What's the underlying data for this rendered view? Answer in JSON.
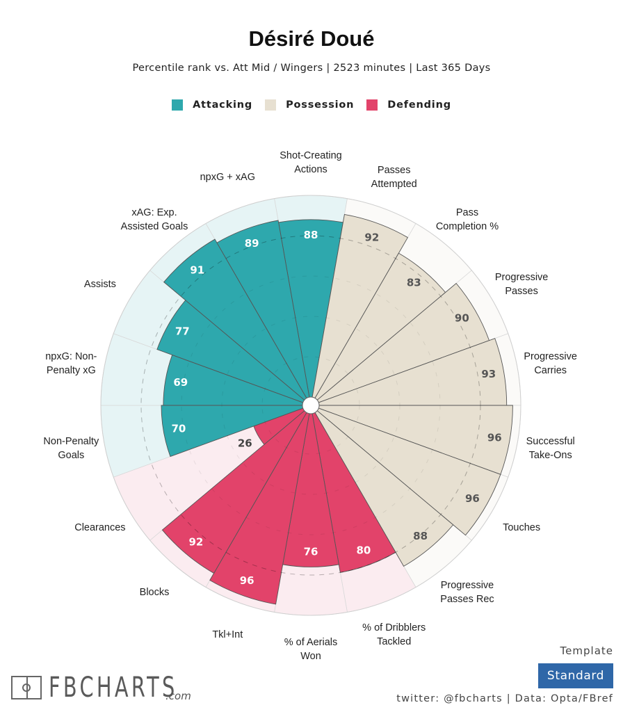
{
  "header": {
    "title": "Désiré Doué",
    "subtitle": "Percentile rank vs. Att Mid / Wingers | 2523 minutes | Last 365 Days"
  },
  "legend": [
    {
      "label": "Attacking",
      "color": "#2ea8ad"
    },
    {
      "label": "Possession",
      "color": "#e7e0d1"
    },
    {
      "label": "Defending",
      "color": "#e2436a"
    }
  ],
  "colors": {
    "Attacking": {
      "bar": "#2ea8ad",
      "bg": "#e6f4f5",
      "text": "#ffffff"
    },
    "Possession": {
      "bar": "#e7e0d1",
      "bg": "#fbfaf8",
      "text": "#555555"
    },
    "Defending": {
      "bar": "#e2436a",
      "bg": "#fbecf0",
      "text": "#ffffff"
    },
    "outside_text": "#444444"
  },
  "chart_data": {
    "type": "polar-bar",
    "title": "Désiré Doué",
    "subtitle": "Percentile rank vs. Att Mid / Wingers | 2523 minutes | Last 365 Days",
    "range": [
      0,
      100
    ],
    "reference_ring": 80,
    "grid_rings": [
      20,
      40,
      60
    ],
    "direction": "clockwise from top",
    "categories": [
      {
        "label": "Shot-Creating\nActions",
        "value": 88,
        "group": "Attacking"
      },
      {
        "label": "Passes\nAttempted",
        "value": 92,
        "group": "Possession"
      },
      {
        "label": "Pass\nCompletion %",
        "value": 83,
        "group": "Possession"
      },
      {
        "label": "Progressive\nPasses",
        "value": 90,
        "group": "Possession"
      },
      {
        "label": "Progressive\nCarries",
        "value": 93,
        "group": "Possession"
      },
      {
        "label": "Successful\nTake-Ons",
        "value": 96,
        "group": "Possession"
      },
      {
        "label": "Touches",
        "value": 96,
        "group": "Possession"
      },
      {
        "label": "Progressive\nPasses Rec",
        "value": 88,
        "group": "Possession"
      },
      {
        "label": "% of Dribblers\nTackled",
        "value": 80,
        "group": "Defending"
      },
      {
        "label": "% of Aerials\nWon",
        "value": 76,
        "group": "Defending"
      },
      {
        "label": "Tkl+Int",
        "value": 96,
        "group": "Defending"
      },
      {
        "label": "Blocks",
        "value": 92,
        "group": "Defending"
      },
      {
        "label": "Clearances",
        "value": 26,
        "group": "Defending"
      },
      {
        "label": "Non-Penalty\nGoals",
        "value": 70,
        "group": "Attacking"
      },
      {
        "label": "npxG: Non-\nPenalty xG",
        "value": 69,
        "group": "Attacking"
      },
      {
        "label": "Assists",
        "value": 77,
        "group": "Attacking"
      },
      {
        "label": "xAG: Exp.\nAssisted Goals",
        "value": 91,
        "group": "Attacking"
      },
      {
        "label": "npxG + xAG",
        "value": 89,
        "group": "Attacking"
      }
    ]
  },
  "footer": {
    "logo_text": "FBCHARTS",
    "logo_suffix": ".com",
    "template_label": "Template",
    "template_value": "Standard",
    "credit": "twitter: @fbcharts | Data: Opta/FBref"
  }
}
